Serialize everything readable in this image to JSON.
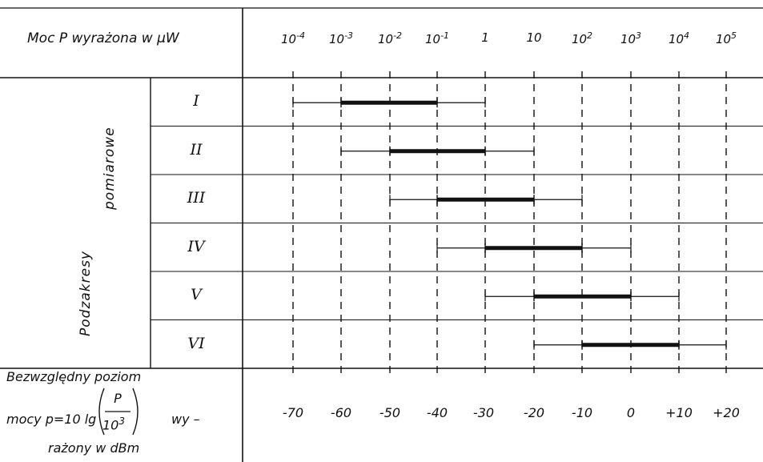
{
  "header": {
    "label": "Moc P wyrażona w μW",
    "power_ticks": [
      {
        "base": "10",
        "exp": "-4"
      },
      {
        "base": "10",
        "exp": "-3"
      },
      {
        "base": "10",
        "exp": "-2"
      },
      {
        "base": "10",
        "exp": "-1"
      },
      {
        "base": "1",
        "exp": ""
      },
      {
        "base": "10",
        "exp": ""
      },
      {
        "base": "10",
        "exp": "2"
      },
      {
        "base": "10",
        "exp": "3"
      },
      {
        "base": "10",
        "exp": "4"
      },
      {
        "base": "10",
        "exp": "5"
      }
    ]
  },
  "group_label": {
    "word1": "Podzakresy",
    "word2": "pomiarowe"
  },
  "subranges": [
    {
      "label": "I",
      "thin_from_exp": -4,
      "thin_to_exp": 0,
      "thick_from_exp": -3,
      "thick_to_exp": -1
    },
    {
      "label": "II",
      "thin_from_exp": -3,
      "thin_to_exp": 1,
      "thick_from_exp": -2,
      "thick_to_exp": 0
    },
    {
      "label": "III",
      "thin_from_exp": -2,
      "thin_to_exp": 2,
      "thick_from_exp": -1,
      "thick_to_exp": 1
    },
    {
      "label": "IV",
      "thin_from_exp": -1,
      "thin_to_exp": 3,
      "thick_from_exp": 0,
      "thick_to_exp": 2
    },
    {
      "label": "V",
      "thin_from_exp": 0,
      "thin_to_exp": 4,
      "thick_from_exp": 1,
      "thick_to_exp": 3
    },
    {
      "label": "VI",
      "thin_from_exp": 1,
      "thin_to_exp": 5,
      "thick_from_exp": 2,
      "thick_to_exp": 4
    }
  ],
  "footer": {
    "line1": "Bezwzględny   poziom",
    "line2_a": "mocy p=10 lg",
    "frac_num": "P",
    "frac_den_base": "10",
    "frac_den_exp": "3",
    "line2_b": "wy –",
    "line3": "rażony  w  dBm",
    "dbm_values": [
      "-70",
      "-60",
      "-50",
      "-40",
      "-30",
      "-20",
      "-10",
      "0",
      "+10",
      "+20"
    ]
  },
  "colors": {
    "line": "#111111",
    "background": "#ffffff"
  }
}
